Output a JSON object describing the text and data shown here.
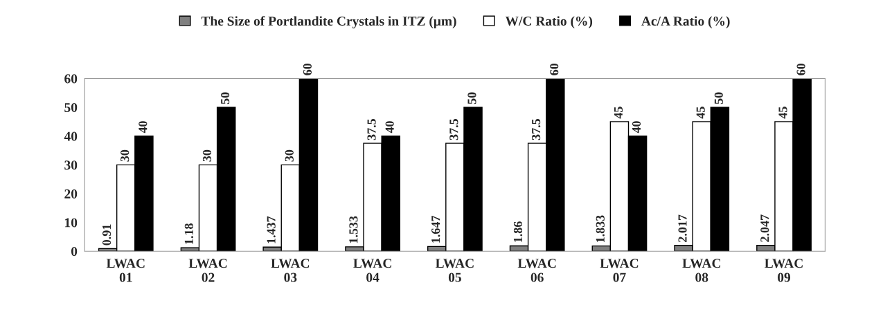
{
  "chart_data": {
    "type": "bar",
    "categories": [
      "LWAC\n01",
      "LWAC\n02",
      "LWAC\n03",
      "LWAC\n04",
      "LWAC\n05",
      "LWAC\n06",
      "LWAC\n07",
      "LWAC\n08",
      "LWAC\n09"
    ],
    "series": [
      {
        "name": "The Size of Portlandite Crystals in ITZ (μm)",
        "color": "#808080",
        "values": [
          0.91,
          1.18,
          1.437,
          1.533,
          1.647,
          1.86,
          1.833,
          2.017,
          2.047
        ]
      },
      {
        "name": "W/C Ratio (%)",
        "color": "#ffffff",
        "values": [
          30,
          30,
          30,
          37.5,
          37.5,
          37.5,
          45,
          45,
          45
        ]
      },
      {
        "name": "Ac/A Ratio (%)",
        "color": "#000000",
        "values": [
          40,
          50,
          60,
          40,
          50,
          60,
          40,
          50,
          60
        ]
      }
    ],
    "ylim": [
      0,
      60
    ],
    "yticks": [
      0,
      10,
      20,
      30,
      40,
      50,
      60
    ],
    "grid": false,
    "legend": "top",
    "data_labels": true
  }
}
